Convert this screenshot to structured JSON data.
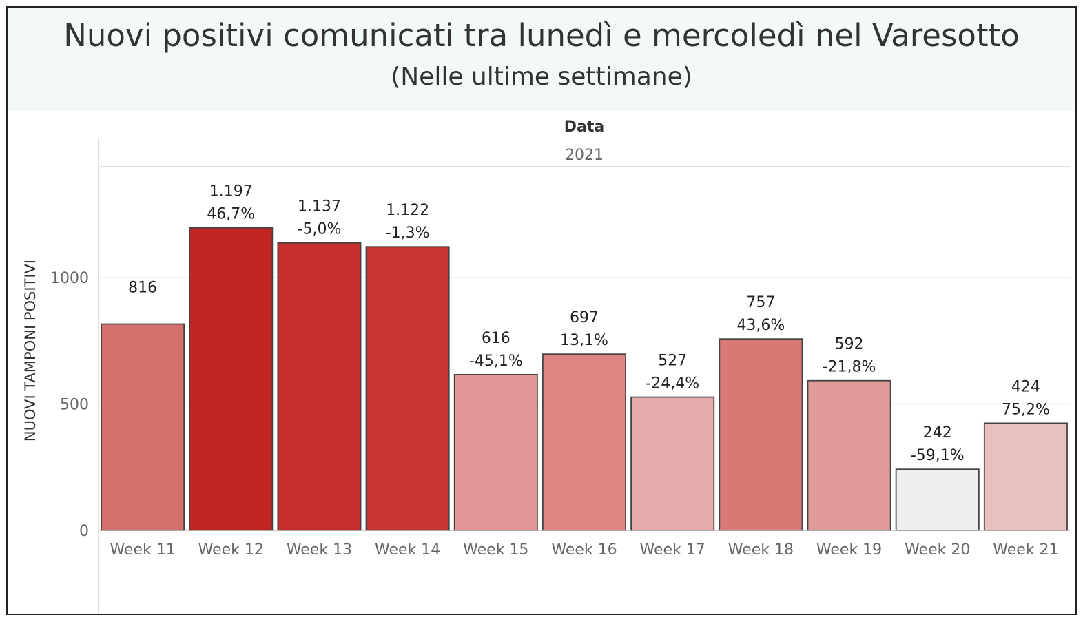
{
  "chart_data": {
    "type": "bar",
    "title": "Nuovi positivi comunicati tra lunedì e mercoledì nel Varesotto",
    "subtitle": "(Nelle ultime settimane)",
    "column_header": "Data",
    "column_year": "2021",
    "ylabel": "NUOVI TAMPONI POSITIVI",
    "ylim": [
      0,
      1000
    ],
    "yticks": [
      0,
      500,
      1000
    ],
    "ytick_labels": [
      "0",
      "500",
      "1000"
    ],
    "grid": true,
    "categories": [
      "Week 11",
      "Week 12",
      "Week 13",
      "Week 14",
      "Week 15",
      "Week 16",
      "Week 17",
      "Week 18",
      "Week 19",
      "Week 20",
      "Week 21"
    ],
    "values": [
      816,
      1197,
      1137,
      1122,
      616,
      697,
      527,
      757,
      592,
      242,
      424
    ],
    "value_labels": [
      "816",
      "1.197",
      "1.137",
      "1.122",
      "616",
      "697",
      "527",
      "757",
      "592",
      "242",
      "424"
    ],
    "change_labels": [
      "",
      "46,7%",
      "-5,0%",
      "-1,3%",
      "-45,1%",
      "13,1%",
      "-24,4%",
      "43,6%",
      "-21,8%",
      "-59,1%",
      "75,2%"
    ],
    "bar_colors": [
      "#d4706d",
      "#c32522",
      "#c62f2c",
      "#c8342f",
      "#e09795",
      "#dc8582",
      "#e5acab",
      "#d97976",
      "#e19b9a",
      "#efefef",
      "#e8c0bf"
    ],
    "bar_border_color": "#444444"
  }
}
